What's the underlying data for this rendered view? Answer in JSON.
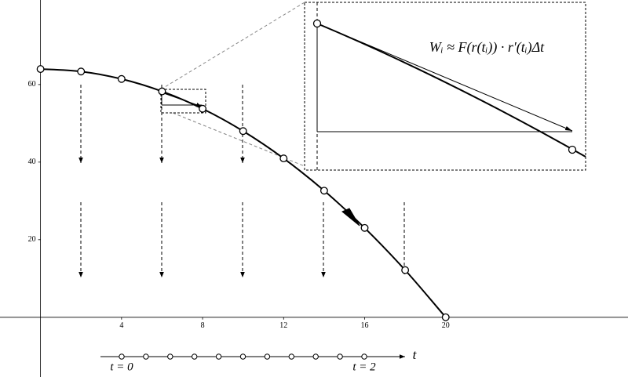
{
  "chart_data": {
    "type": "line",
    "x": [
      0,
      2,
      4,
      6,
      8,
      10,
      12,
      14,
      16,
      18,
      20
    ],
    "series": [
      {
        "color": "#000000",
        "values": [
          64,
          63.36,
          61.44,
          58.24,
          53.76,
          48,
          40.96,
          32.64,
          23.04,
          12.16,
          0
        ]
      }
    ],
    "xlim": [
      -2,
      29
    ],
    "ylim": [
      -15.4,
      81.8
    ],
    "xticks": [
      4,
      8,
      12,
      16,
      20
    ],
    "yticks": [
      20,
      40,
      60
    ],
    "annotations": {
      "formula": "Wᵢ ≈ F(r(tᵢ)) · r′(tᵢ)Δt",
      "t_start": "t = 0",
      "t_end": "t = 2",
      "t_axis": "t"
    }
  }
}
